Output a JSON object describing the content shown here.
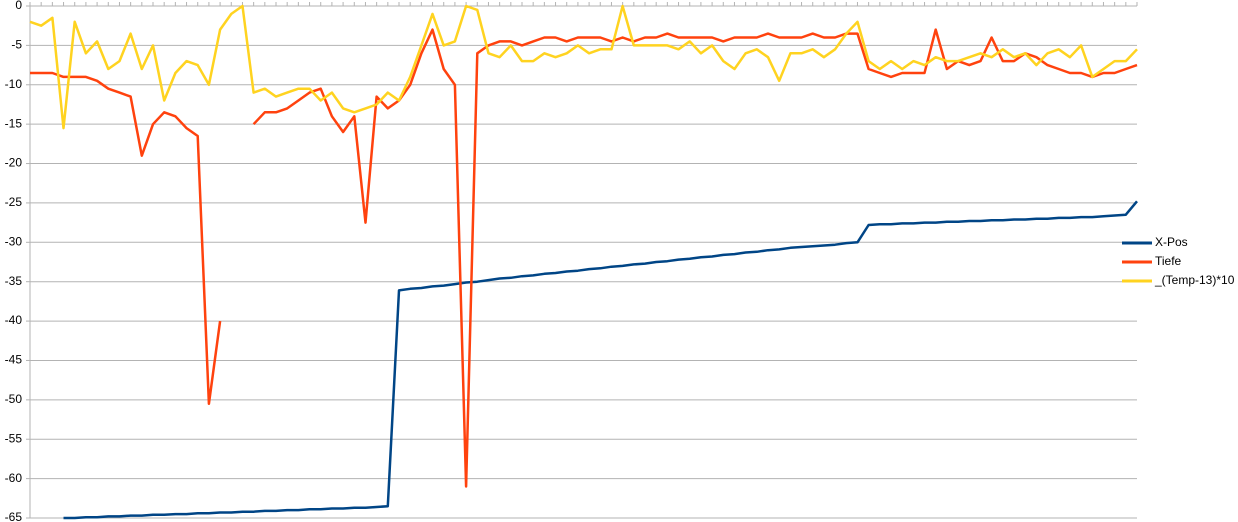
{
  "chart_data": {
    "type": "line",
    "categories": [
      null,
      null,
      null,
      null,
      null,
      null,
      null,
      null,
      null,
      null,
      null,
      null,
      null,
      null,
      null,
      null,
      null,
      null,
      null,
      null,
      null,
      null,
      null,
      null,
      null,
      null,
      null,
      null,
      null,
      null,
      null,
      null,
      null,
      null,
      null,
      null,
      null,
      null,
      null,
      null,
      null,
      null,
      null,
      null,
      null,
      null,
      null,
      null,
      null,
      null,
      null,
      null,
      null,
      null,
      null,
      null,
      null,
      null,
      null,
      null,
      null,
      null,
      null,
      null,
      null,
      null,
      null,
      null,
      null,
      null,
      null,
      null,
      null,
      null,
      null,
      null,
      null,
      null,
      null,
      null,
      null,
      null,
      null,
      null,
      null,
      null,
      null,
      null,
      null,
      null,
      null,
      null,
      null,
      null,
      null,
      null,
      null,
      null,
      null,
      null
    ],
    "series": [
      {
        "name": "X-Pos",
        "color": "#004586",
        "values": [
          null,
          null,
          null,
          -65.0,
          -65.0,
          -64.9,
          -64.9,
          -64.8,
          -64.8,
          -64.7,
          -64.7,
          -64.6,
          -64.6,
          -64.5,
          -64.5,
          -64.4,
          -64.4,
          -64.3,
          -64.3,
          -64.2,
          -64.2,
          -64.1,
          -64.1,
          -64.0,
          -64.0,
          -63.9,
          -63.9,
          -63.8,
          -63.8,
          -63.7,
          -63.7,
          -63.6,
          -63.5,
          -36.1,
          -35.9,
          -35.8,
          -35.6,
          -35.5,
          -35.3,
          -35.1,
          -35.0,
          -34.8,
          -34.6,
          -34.5,
          -34.3,
          -34.2,
          -34.0,
          -33.9,
          -33.7,
          -33.6,
          -33.4,
          -33.3,
          -33.1,
          -33.0,
          -32.8,
          -32.7,
          -32.5,
          -32.4,
          -32.2,
          -32.1,
          -31.9,
          -31.8,
          -31.6,
          -31.5,
          -31.3,
          -31.2,
          -31.0,
          -30.9,
          -30.7,
          -30.6,
          -30.5,
          -30.4,
          -30.3,
          -30.1,
          -30.0,
          -27.8,
          -27.7,
          -27.7,
          -27.6,
          -27.6,
          -27.5,
          -27.5,
          -27.4,
          -27.4,
          -27.3,
          -27.3,
          -27.2,
          -27.2,
          -27.1,
          -27.1,
          -27.0,
          -27.0,
          -26.9,
          -26.9,
          -26.8,
          -26.8,
          -26.7,
          -26.6,
          -26.5,
          -24.8
        ]
      },
      {
        "name": "Tiefe",
        "color": "#ff420e",
        "values": [
          -8.5,
          -8.5,
          -8.5,
          -9,
          -9,
          -9,
          -9.5,
          -10.5,
          -11,
          -11.5,
          -19,
          -15,
          -13.5,
          -14,
          -15.5,
          -16.5,
          -50.5,
          -40,
          null,
          null,
          -15,
          -13.5,
          -13.5,
          -13,
          -12,
          -11,
          -10.5,
          -14,
          -16,
          -14,
          -27.5,
          -11.5,
          -13,
          -12,
          -10,
          -6,
          -3,
          -8,
          -10,
          -61,
          -6,
          -5,
          -4.5,
          -4.5,
          -5,
          -4.5,
          -4,
          -4,
          -4.5,
          -4,
          -4,
          -4,
          -4.5,
          -4,
          -4.5,
          -4,
          -4,
          -3.5,
          -4,
          -4,
          -4,
          -4,
          -4.5,
          -4,
          -4,
          -4,
          -3.5,
          -4,
          -4,
          -4,
          -3.5,
          -4,
          -4,
          -3.5,
          -3.5,
          -8,
          -8.5,
          -9,
          -8.5,
          -8.5,
          -8.5,
          -3,
          -8,
          -7,
          -7.5,
          -7,
          -4,
          -7,
          -7,
          -6,
          -6.5,
          -7.5,
          -8,
          -8.5,
          -8.5,
          -9,
          -8.5,
          -8.5,
          -8,
          -7.5
        ]
      },
      {
        "name": "_(Temp-13)*10",
        "color": "#ffd320",
        "values": [
          -2,
          -2.5,
          -1.5,
          -15.5,
          -2,
          -6,
          -4.5,
          -8,
          -7,
          -3.5,
          -8,
          -5,
          -12,
          -8.5,
          -7,
          -7.5,
          -10,
          -3,
          -1,
          0,
          -11,
          -10.5,
          -11.5,
          -11,
          -10.5,
          -10.5,
          -12,
          -11,
          -13,
          -13.5,
          -13,
          -12.5,
          -11,
          -12,
          -9,
          -5,
          -1,
          -5,
          -4.5,
          0,
          -0.5,
          -6,
          -6.5,
          -5,
          -7,
          -7,
          -6,
          -6.5,
          -6,
          -5,
          -6,
          -5.5,
          -5.5,
          0,
          -5,
          -5,
          -5,
          -5,
          -5.5,
          -4.5,
          -6,
          -5,
          -7,
          -8,
          -6,
          -5.5,
          -6.5,
          -9.5,
          -6,
          -6,
          -5.5,
          -6.5,
          -5.5,
          -3.5,
          -2,
          -7,
          -8,
          -7,
          -8,
          -7,
          -7.5,
          -6.5,
          -7,
          -7,
          -6.5,
          -6,
          -6.5,
          -5.5,
          -6.5,
          -6,
          -7.5,
          -6,
          -5.5,
          -6.5,
          -5,
          -9,
          -8,
          -7,
          -7,
          -5.5
        ]
      }
    ],
    "ylim": [
      -65,
      0
    ],
    "yticks": [
      0,
      -5,
      -10,
      -15,
      -20,
      -25,
      -30,
      -35,
      -40,
      -45,
      -50,
      -55,
      -60,
      -65
    ],
    "grid": true,
    "legend": "right"
  }
}
